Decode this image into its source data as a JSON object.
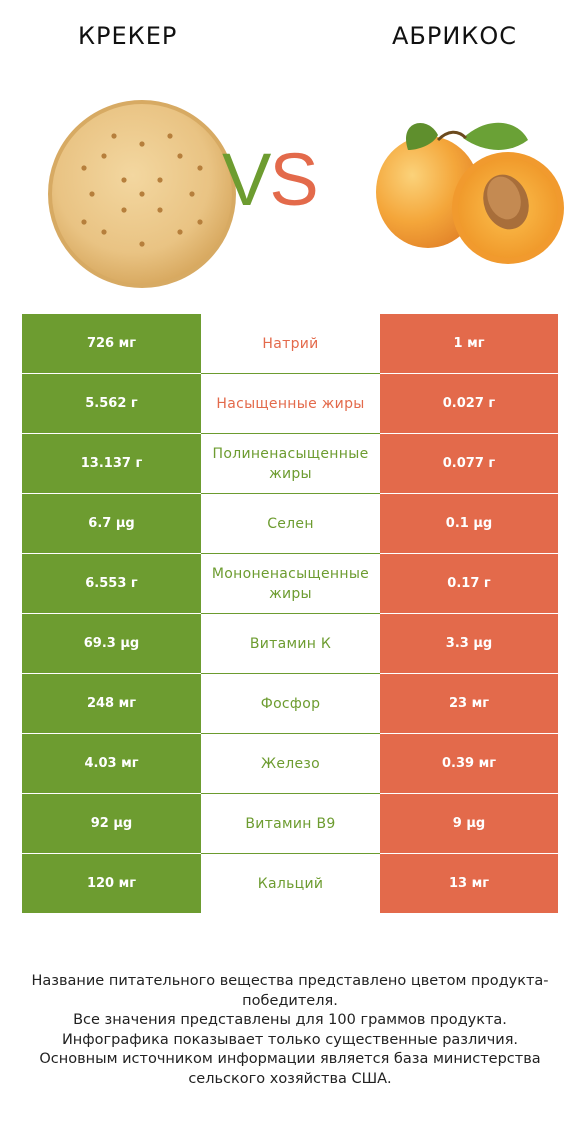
{
  "header": {
    "left_title": "КРЕКЕР",
    "right_title": "АБРИКОС",
    "vs_v": "V",
    "vs_s": "S"
  },
  "colors": {
    "left": "#6d9c30",
    "right": "#e36a4b",
    "white": "#ffffff"
  },
  "rows": [
    {
      "left": "726 мг",
      "name": "Натрий",
      "right": "1 мг",
      "winner": "right"
    },
    {
      "left": "5.562 г",
      "name": "Насыщенные жиры",
      "right": "0.027 г",
      "winner": "right"
    },
    {
      "left": "13.137 г",
      "name": "Полиненасыщенные жиры",
      "right": "0.077 г",
      "winner": "left"
    },
    {
      "left": "6.7 µg",
      "name": "Селен",
      "right": "0.1 µg",
      "winner": "left"
    },
    {
      "left": "6.553 г",
      "name": "Мононенасыщенные жиры",
      "right": "0.17 г",
      "winner": "left"
    },
    {
      "left": "69.3 µg",
      "name": "Витамин К",
      "right": "3.3 µg",
      "winner": "left"
    },
    {
      "left": "248 мг",
      "name": "Фосфор",
      "right": "23 мг",
      "winner": "left"
    },
    {
      "left": "4.03 мг",
      "name": "Железо",
      "right": "0.39 мг",
      "winner": "left"
    },
    {
      "left": "92 µg",
      "name": "Витамин B9",
      "right": "9 µg",
      "winner": "left"
    },
    {
      "left": "120 мг",
      "name": "Кальций",
      "right": "13 мг",
      "winner": "left"
    }
  ],
  "footer": [
    "Название питательного вещества представлено цветом продукта-победителя.",
    "Все значения представлены для 100 граммов продукта.",
    "Инфографика показывает только существенные различия.",
    "Основным источником информации является база министерства сельского хозяйства США."
  ]
}
